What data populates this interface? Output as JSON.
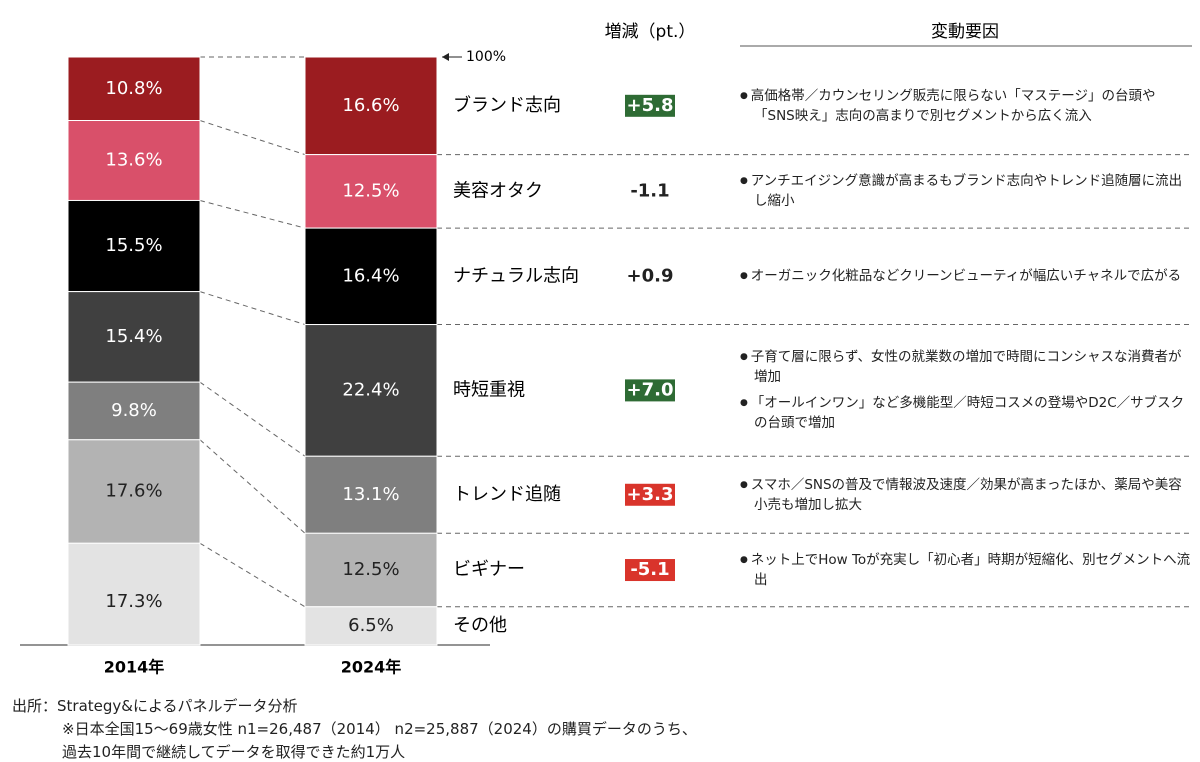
{
  "chart_data": {
    "type": "stacked_bar",
    "categories": [
      "2014年",
      "2024年"
    ],
    "ylim": [
      0,
      100
    ],
    "yticks": [
      {
        "value": 100,
        "label": "100%"
      }
    ],
    "series": [
      {
        "name": "ブランド志向",
        "color": "#9b1c20",
        "text_color": "#ffffff",
        "values": [
          10.8,
          16.6
        ],
        "value_labels": [
          "10.8%",
          "16.6%"
        ]
      },
      {
        "name": "美容オタク",
        "color": "#d9506a",
        "text_color": "#ffffff",
        "values": [
          13.6,
          12.5
        ],
        "value_labels": [
          "13.6%",
          "12.5%"
        ]
      },
      {
        "name": "ナチュラル志向",
        "color": "#000000",
        "text_color": "#ffffff",
        "values": [
          15.5,
          16.4
        ],
        "value_labels": [
          "15.5%",
          "16.4%"
        ]
      },
      {
        "name": "時短重視",
        "color": "#404040",
        "text_color": "#ffffff",
        "values": [
          15.4,
          22.4
        ],
        "value_labels": [
          "15.4%",
          "22.4%"
        ]
      },
      {
        "name": "トレンド追随",
        "color": "#7f7f7f",
        "text_color": "#ffffff",
        "values": [
          9.8,
          13.1
        ],
        "value_labels": [
          "9.8%",
          "13.1%"
        ]
      },
      {
        "name": "ビギナー",
        "color": "#b3b3b3",
        "text_color": "#222222",
        "values": [
          17.6,
          12.5
        ],
        "value_labels": [
          "17.6%",
          "12.5%"
        ]
      },
      {
        "name": "その他",
        "color": "#e3e3e3",
        "text_color": "#222222",
        "values": [
          17.3,
          6.5
        ],
        "value_labels": [
          "17.3%",
          "6.5%"
        ]
      }
    ],
    "change_header": "増減（pt.）",
    "changes": {
      "values": [
        5.8,
        -1.1,
        0.9,
        7.0,
        3.3,
        -5.1
      ],
      "value_labels": [
        "+5.8",
        "-1.1",
        "+0.9",
        "+7.0",
        "+3.3",
        "-5.1"
      ],
      "colors": [
        "#2e6b34",
        null,
        null,
        "#2e6b34",
        "#d9342b",
        "#d9342b"
      ]
    },
    "factor_header": "変動要因",
    "factors": [
      [
        "高価格帯／カウンセリング販売に限らない「マステージ」の台頭や「SNS映え」志向の高まりで別セグメントから広く流入"
      ],
      [
        "アンチエイジング意識が高まるもブランド志向やトレンド追随層に流出し縮小"
      ],
      [
        "オーガニック化粧品などクリーンビューティが幅広いチャネルで広がる"
      ],
      [
        "子育て層に限らず、女性の就業数の増加で時間にコンシャスな消費者が増加",
        "「オールインワン」など多機能型／時短コスメの登場やD2C／サブスクの台頭で増加"
      ],
      [
        "スマホ／SNSの普及で情報波及速度／効果が高まったほか、薬局や美容小売も増加し拡大"
      ],
      [
        "ネット上でHow Toが充実し「初心者」時期が短縮化、別セグメントへ流出"
      ]
    ],
    "source": [
      "出所：Strategy&によるパネルデータ分析",
      "※日本全国15～69歳女性 n1=26,487（2014） n2=25,887（2024）の購買データのうち、",
      "過去10年間で継続してデータを取得できた約1万人"
    ]
  }
}
